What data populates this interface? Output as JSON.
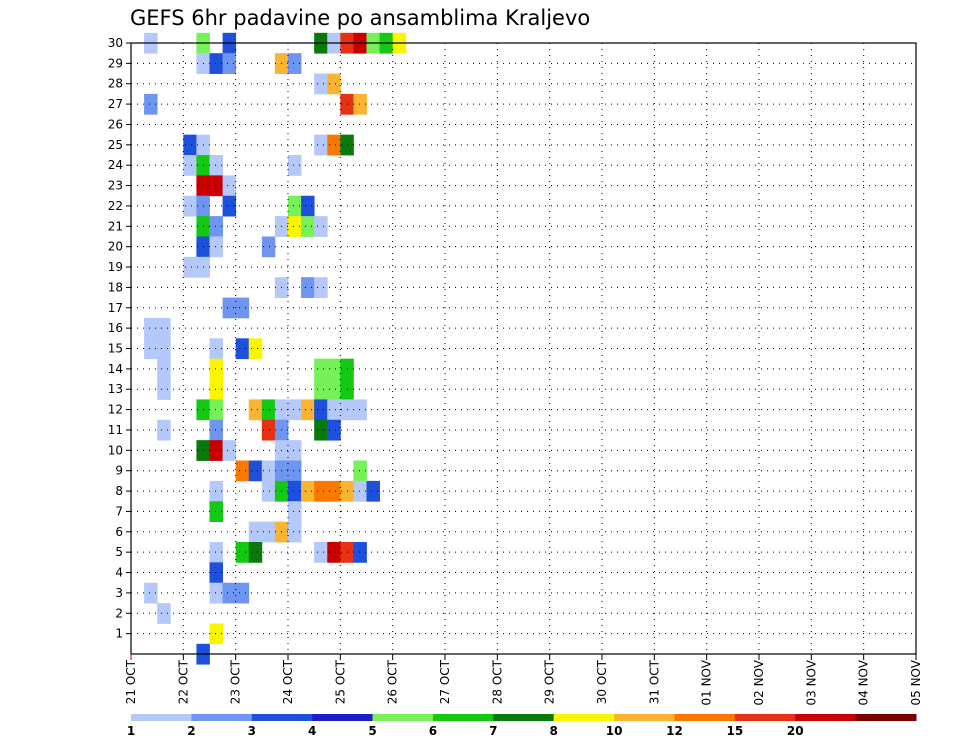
{
  "chart_data": {
    "type": "heatmap",
    "title": "GEFS 6hr padavine po ansamblima Kraljevo",
    "y_ticks": [
      "1",
      "2",
      "3",
      "4",
      "5",
      "6",
      "7",
      "8",
      "9",
      "10",
      "11",
      "12",
      "13",
      "14",
      "15",
      "16",
      "17",
      "18",
      "19",
      "20",
      "21",
      "22",
      "23",
      "24",
      "25",
      "26",
      "27",
      "28",
      "29",
      "30"
    ],
    "x_ticks": [
      "21 OCT",
      "22 OCT",
      "23 OCT",
      "24 OCT",
      "25 OCT",
      "26 OCT",
      "27 OCT",
      "28 OCT",
      "29 OCT",
      "30 OCT",
      "31 OCT",
      "01 NOV",
      "02 NOV",
      "03 NOV",
      "04 NOV",
      "05 NOV"
    ],
    "time_steps_per_day": 4,
    "ylim": [
      0,
      30
    ],
    "grid": true,
    "colorbar": {
      "colors": [
        "#b4c8fa",
        "#6e96f0",
        "#1e50dc",
        "#1e1ec8",
        "#78f05a",
        "#14c814",
        "#0a780a",
        "#faf500",
        "#fab432",
        "#fa7800",
        "#e63214",
        "#c80000",
        "#780000"
      ],
      "labels": [
        "1",
        "2",
        "3",
        "4",
        "5",
        "6",
        "7",
        "8",
        "10",
        "12",
        "15",
        "20"
      ]
    },
    "cells": [
      {
        "member": 30,
        "t": 1,
        "v": 1
      },
      {
        "member": 30,
        "t": 5,
        "v": 5
      },
      {
        "member": 30,
        "t": 7,
        "v": 3
      },
      {
        "member": 30,
        "t": 14,
        "v": 7
      },
      {
        "member": 30,
        "t": 15,
        "v": 1
      },
      {
        "member": 30,
        "t": 16,
        "v": 15
      },
      {
        "member": 30,
        "t": 17,
        "v": 20
      },
      {
        "member": 30,
        "t": 18,
        "v": 5
      },
      {
        "member": 30,
        "t": 19,
        "v": 6
      },
      {
        "member": 30,
        "t": 20,
        "v": 8
      },
      {
        "member": 29,
        "t": 5,
        "v": 1
      },
      {
        "member": 29,
        "t": 6,
        "v": 3
      },
      {
        "member": 29,
        "t": 7,
        "v": 2
      },
      {
        "member": 29,
        "t": 11,
        "v": 10
      },
      {
        "member": 29,
        "t": 12,
        "v": 2
      },
      {
        "member": 28,
        "t": 14,
        "v": 1
      },
      {
        "member": 28,
        "t": 15,
        "v": 10
      },
      {
        "member": 27,
        "t": 1,
        "v": 2
      },
      {
        "member": 27,
        "t": 16,
        "v": 15
      },
      {
        "member": 27,
        "t": 17,
        "v": 10
      },
      {
        "member": 25,
        "t": 4,
        "v": 3
      },
      {
        "member": 25,
        "t": 5,
        "v": 1
      },
      {
        "member": 25,
        "t": 14,
        "v": 1
      },
      {
        "member": 25,
        "t": 15,
        "v": 12
      },
      {
        "member": 25,
        "t": 16,
        "v": 7
      },
      {
        "member": 24,
        "t": 4,
        "v": 1
      },
      {
        "member": 24,
        "t": 5,
        "v": 6
      },
      {
        "member": 24,
        "t": 6,
        "v": 1
      },
      {
        "member": 24,
        "t": 12,
        "v": 1
      },
      {
        "member": 23,
        "t": 5,
        "v": 20
      },
      {
        "member": 23,
        "t": 6,
        "v": 20
      },
      {
        "member": 23,
        "t": 7,
        "v": 1
      },
      {
        "member": 22,
        "t": 4,
        "v": 1
      },
      {
        "member": 22,
        "t": 5,
        "v": 2
      },
      {
        "member": 22,
        "t": 7,
        "v": 3
      },
      {
        "member": 22,
        "t": 12,
        "v": 5
      },
      {
        "member": 22,
        "t": 13,
        "v": 3
      },
      {
        "member": 21,
        "t": 5,
        "v": 6
      },
      {
        "member": 21,
        "t": 6,
        "v": 2
      },
      {
        "member": 21,
        "t": 11,
        "v": 1
      },
      {
        "member": 21,
        "t": 12,
        "v": 8
      },
      {
        "member": 21,
        "t": 13,
        "v": 5
      },
      {
        "member": 21,
        "t": 14,
        "v": 1
      },
      {
        "member": 20,
        "t": 5,
        "v": 3
      },
      {
        "member": 20,
        "t": 6,
        "v": 1
      },
      {
        "member": 20,
        "t": 10,
        "v": 2
      },
      {
        "member": 19,
        "t": 4,
        "v": 1
      },
      {
        "member": 19,
        "t": 5,
        "v": 1
      },
      {
        "member": 18,
        "t": 11,
        "v": 1
      },
      {
        "member": 18,
        "t": 13,
        "v": 2
      },
      {
        "member": 18,
        "t": 14,
        "v": 1
      },
      {
        "member": 17,
        "t": 7,
        "v": 2
      },
      {
        "member": 17,
        "t": 8,
        "v": 2
      },
      {
        "member": 16,
        "t": 1,
        "v": 1
      },
      {
        "member": 16,
        "t": 2,
        "v": 1
      },
      {
        "member": 15,
        "t": 1,
        "v": 1
      },
      {
        "member": 15,
        "t": 2,
        "v": 1
      },
      {
        "member": 15,
        "t": 6,
        "v": 1
      },
      {
        "member": 15,
        "t": 8,
        "v": 3
      },
      {
        "member": 15,
        "t": 9,
        "v": 8
      },
      {
        "member": 14,
        "t": 2,
        "v": 1
      },
      {
        "member": 14,
        "t": 6,
        "v": 8
      },
      {
        "member": 14,
        "t": 14,
        "v": 5
      },
      {
        "member": 14,
        "t": 15,
        "v": 5
      },
      {
        "member": 14,
        "t": 16,
        "v": 6
      },
      {
        "member": 13,
        "t": 2,
        "v": 1
      },
      {
        "member": 13,
        "t": 6,
        "v": 8
      },
      {
        "member": 13,
        "t": 14,
        "v": 5
      },
      {
        "member": 13,
        "t": 15,
        "v": 5
      },
      {
        "member": 13,
        "t": 16,
        "v": 6
      },
      {
        "member": 12,
        "t": 5,
        "v": 6
      },
      {
        "member": 12,
        "t": 6,
        "v": 5
      },
      {
        "member": 12,
        "t": 9,
        "v": 10
      },
      {
        "member": 12,
        "t": 10,
        "v": 6
      },
      {
        "member": 12,
        "t": 11,
        "v": 1
      },
      {
        "member": 12,
        "t": 12,
        "v": 1
      },
      {
        "member": 12,
        "t": 13,
        "v": 10
      },
      {
        "member": 12,
        "t": 14,
        "v": 3
      },
      {
        "member": 12,
        "t": 15,
        "v": 1
      },
      {
        "member": 12,
        "t": 16,
        "v": 1
      },
      {
        "member": 12,
        "t": 17,
        "v": 1
      },
      {
        "member": 11,
        "t": 2,
        "v": 1
      },
      {
        "member": 11,
        "t": 6,
        "v": 2
      },
      {
        "member": 11,
        "t": 10,
        "v": 15
      },
      {
        "member": 11,
        "t": 11,
        "v": 2
      },
      {
        "member": 11,
        "t": 14,
        "v": 7
      },
      {
        "member": 11,
        "t": 15,
        "v": 3
      },
      {
        "member": 10,
        "t": 5,
        "v": 7
      },
      {
        "member": 10,
        "t": 6,
        "v": 20
      },
      {
        "member": 10,
        "t": 7,
        "v": 1
      },
      {
        "member": 10,
        "t": 11,
        "v": 1
      },
      {
        "member": 10,
        "t": 12,
        "v": 1
      },
      {
        "member": 9,
        "t": 8,
        "v": 12
      },
      {
        "member": 9,
        "t": 9,
        "v": 3
      },
      {
        "member": 9,
        "t": 10,
        "v": 1
      },
      {
        "member": 9,
        "t": 11,
        "v": 2
      },
      {
        "member": 9,
        "t": 12,
        "v": 2
      },
      {
        "member": 9,
        "t": 17,
        "v": 5
      },
      {
        "member": 8,
        "t": 6,
        "v": 1
      },
      {
        "member": 8,
        "t": 10,
        "v": 1
      },
      {
        "member": 8,
        "t": 11,
        "v": 6
      },
      {
        "member": 8,
        "t": 12,
        "v": 3
      },
      {
        "member": 8,
        "t": 13,
        "v": 10
      },
      {
        "member": 8,
        "t": 14,
        "v": 12
      },
      {
        "member": 8,
        "t": 15,
        "v": 12
      },
      {
        "member": 8,
        "t": 16,
        "v": 10
      },
      {
        "member": 8,
        "t": 17,
        "v": 1
      },
      {
        "member": 8,
        "t": 18,
        "v": 3
      },
      {
        "member": 7,
        "t": 6,
        "v": 6
      },
      {
        "member": 7,
        "t": 12,
        "v": 1
      },
      {
        "member": 6,
        "t": 9,
        "v": 1
      },
      {
        "member": 6,
        "t": 10,
        "v": 1
      },
      {
        "member": 6,
        "t": 11,
        "v": 10
      },
      {
        "member": 6,
        "t": 12,
        "v": 1
      },
      {
        "member": 5,
        "t": 6,
        "v": 1
      },
      {
        "member": 5,
        "t": 8,
        "v": 6
      },
      {
        "member": 5,
        "t": 9,
        "v": 7
      },
      {
        "member": 5,
        "t": 14,
        "v": 1
      },
      {
        "member": 5,
        "t": 15,
        "v": 20
      },
      {
        "member": 5,
        "t": 16,
        "v": 15
      },
      {
        "member": 5,
        "t": 17,
        "v": 3
      },
      {
        "member": 4,
        "t": 6,
        "v": 3
      },
      {
        "member": 3,
        "t": 1,
        "v": 1
      },
      {
        "member": 3,
        "t": 6,
        "v": 1
      },
      {
        "member": 3,
        "t": 7,
        "v": 2
      },
      {
        "member": 3,
        "t": 8,
        "v": 2
      },
      {
        "member": 2,
        "t": 2,
        "v": 1
      },
      {
        "member": 1,
        "t": 6,
        "v": 8
      },
      {
        "member": 0,
        "t": 5,
        "v": 3
      }
    ]
  }
}
